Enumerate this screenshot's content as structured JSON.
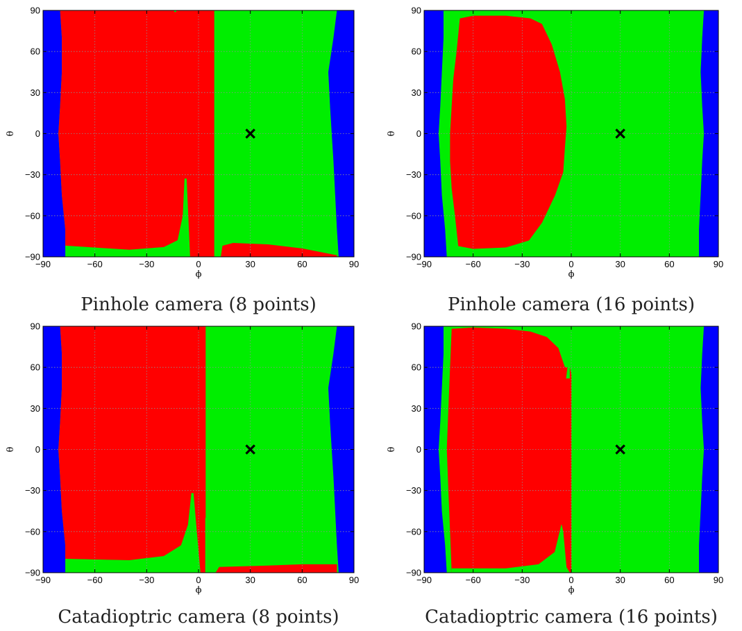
{
  "colors": {
    "blue": "#0000ff",
    "red": "#ff0000",
    "green": "#00ee00",
    "grid": "#8f8f8f",
    "marker": "#000000"
  },
  "chart_data": [
    {
      "type": "heatmap",
      "title": "",
      "caption": "Pinhole camera (8 points)",
      "xlabel": "ϕ",
      "ylabel": "θ",
      "xlim": [
        -90,
        90
      ],
      "ylim": [
        -90,
        90
      ],
      "xticks": [
        -90,
        -60,
        -30,
        0,
        30,
        60,
        90
      ],
      "yticks": [
        -90,
        -60,
        -30,
        0,
        30,
        60,
        90
      ],
      "xtick_labels": [
        "−90",
        "−60",
        "−30",
        "0",
        "30",
        "60",
        "90"
      ],
      "ytick_labels": [
        "−90",
        "−60",
        "−30",
        "0",
        "30",
        "60",
        "90"
      ],
      "grid": true,
      "marker": {
        "x": 30,
        "y": 0,
        "symbol": "x"
      },
      "background_region": "blue",
      "regions": [
        {
          "color": "green",
          "points": [
            [
              -80,
              90
            ],
            [
              80,
              90
            ],
            [
              78,
              70
            ],
            [
              75,
              45
            ],
            [
              76,
              20
            ],
            [
              77,
              0
            ],
            [
              78,
              -20
            ],
            [
              79,
              -45
            ],
            [
              80,
              -70
            ],
            [
              81,
              -90
            ],
            [
              -76,
              -90
            ],
            [
              -77,
              -82
            ],
            [
              -77,
              -70
            ],
            [
              -79,
              -45
            ],
            [
              -80,
              -20
            ],
            [
              -81,
              0
            ],
            [
              -80,
              20
            ],
            [
              -79,
              45
            ],
            [
              -79,
              70
            ],
            [
              -80,
              90
            ]
          ]
        },
        {
          "color": "red",
          "points": [
            [
              -80,
              90
            ],
            [
              9,
              90
            ],
            [
              9,
              -90
            ],
            [
              -76,
              -90
            ],
            [
              -77,
              -82
            ],
            [
              -77,
              -70
            ],
            [
              -79,
              -45
            ],
            [
              -80,
              -20
            ],
            [
              -81,
              0
            ],
            [
              -80,
              20
            ],
            [
              -79,
              45
            ],
            [
              -79,
              70
            ]
          ]
        },
        {
          "color": "green",
          "points": [
            [
              -77,
              -82
            ],
            [
              -40,
              -85
            ],
            [
              -20,
              -83
            ],
            [
              -12,
              -78
            ],
            [
              -9,
              -60
            ],
            [
              -8,
              -33
            ],
            [
              -7,
              -33
            ],
            [
              -5,
              -90
            ],
            [
              -77,
              -90
            ]
          ]
        },
        {
          "color": "red",
          "points": [
            [
              13,
              -90
            ],
            [
              14,
              -82
            ],
            [
              20,
              -80
            ],
            [
              40,
              -81
            ],
            [
              60,
              -84
            ],
            [
              80,
              -89
            ],
            [
              80,
              -90
            ]
          ]
        },
        {
          "color": "green",
          "points": [
            [
              -14,
              89
            ],
            [
              -14,
              90
            ],
            [
              -13,
              90
            ],
            [
              -13,
              89
            ]
          ]
        }
      ]
    },
    {
      "type": "heatmap",
      "title": "",
      "caption": "Pinhole camera (16 points)",
      "xlabel": "ϕ",
      "ylabel": "θ",
      "xlim": [
        -90,
        90
      ],
      "ylim": [
        -90,
        90
      ],
      "xticks": [
        -90,
        -60,
        -30,
        0,
        30,
        60,
        90
      ],
      "yticks": [
        -90,
        -60,
        -30,
        0,
        30,
        60,
        90
      ],
      "xtick_labels": [
        "−90",
        "−60",
        "−30",
        "0",
        "30",
        "60",
        "90"
      ],
      "ytick_labels": [
        "−90",
        "−60",
        "−30",
        "0",
        "30",
        "60",
        "90"
      ],
      "grid": true,
      "marker": {
        "x": 30,
        "y": 0,
        "symbol": "x"
      },
      "background_region": "blue",
      "regions": [
        {
          "color": "green",
          "points": [
            [
              -78,
              90
            ],
            [
              81,
              90
            ],
            [
              80,
              70
            ],
            [
              79,
              45
            ],
            [
              80,
              20
            ],
            [
              81,
              0
            ],
            [
              80,
              -20
            ],
            [
              79,
              -45
            ],
            [
              78,
              -70
            ],
            [
              78,
              -90
            ],
            [
              -76,
              -90
            ],
            [
              -77,
              -70
            ],
            [
              -79,
              -45
            ],
            [
              -80,
              -20
            ],
            [
              -81,
              0
            ],
            [
              -80,
              20
            ],
            [
              -79,
              45
            ],
            [
              -78,
              70
            ]
          ]
        },
        {
          "color": "red",
          "points": [
            [
              -68,
              84
            ],
            [
              -60,
              86
            ],
            [
              -40,
              86
            ],
            [
              -25,
              84
            ],
            [
              -18,
              80
            ],
            [
              -12,
              65
            ],
            [
              -7,
              45
            ],
            [
              -4,
              25
            ],
            [
              -3,
              5
            ],
            [
              -4,
              -10
            ],
            [
              -5,
              -28
            ],
            [
              -10,
              -45
            ],
            [
              -18,
              -65
            ],
            [
              -26,
              -78
            ],
            [
              -40,
              -83
            ],
            [
              -60,
              -84
            ],
            [
              -69,
              -82
            ],
            [
              -71,
              -60
            ],
            [
              -73,
              -40
            ],
            [
              -74,
              -20
            ],
            [
              -74,
              0
            ],
            [
              -73,
              20
            ],
            [
              -72,
              40
            ],
            [
              -70,
              60
            ]
          ]
        }
      ]
    },
    {
      "type": "heatmap",
      "title": "",
      "caption": "Catadioptric camera (8 points)",
      "xlabel": "ϕ",
      "ylabel": "θ",
      "xlim": [
        -90,
        90
      ],
      "ylim": [
        -90,
        90
      ],
      "xticks": [
        -90,
        -60,
        -30,
        0,
        30,
        60,
        90
      ],
      "yticks": [
        -90,
        -60,
        -30,
        0,
        30,
        60,
        90
      ],
      "xtick_labels": [
        "−90",
        "−60",
        "−30",
        "0",
        "30",
        "60",
        "90"
      ],
      "ytick_labels": [
        "−90",
        "−60",
        "−30",
        "0",
        "30",
        "60",
        "90"
      ],
      "grid": true,
      "marker": {
        "x": 30,
        "y": 0,
        "symbol": "x"
      },
      "background_region": "blue",
      "regions": [
        {
          "color": "green",
          "points": [
            [
              -80,
              90
            ],
            [
              80,
              90
            ],
            [
              78,
              70
            ],
            [
              75,
              45
            ],
            [
              76,
              20
            ],
            [
              77,
              0
            ],
            [
              78,
              -20
            ],
            [
              79,
              -45
            ],
            [
              80,
              -70
            ],
            [
              81,
              -90
            ],
            [
              -76,
              -90
            ],
            [
              -77,
              -82
            ],
            [
              -77,
              -70
            ],
            [
              -79,
              -45
            ],
            [
              -80,
              -20
            ],
            [
              -81,
              0
            ],
            [
              -80,
              20
            ],
            [
              -79,
              45
            ],
            [
              -79,
              70
            ]
          ]
        },
        {
          "color": "red",
          "points": [
            [
              -80,
              90
            ],
            [
              4,
              90
            ],
            [
              4,
              -90
            ],
            [
              -76,
              -90
            ],
            [
              -77,
              -82
            ],
            [
              -77,
              -70
            ],
            [
              -79,
              -45
            ],
            [
              -80,
              -20
            ],
            [
              -81,
              0
            ],
            [
              -80,
              20
            ],
            [
              -79,
              45
            ],
            [
              -79,
              70
            ]
          ]
        },
        {
          "color": "green",
          "points": [
            [
              -77,
              -80
            ],
            [
              -40,
              -81
            ],
            [
              -20,
              -78
            ],
            [
              -10,
              -70
            ],
            [
              -6,
              -55
            ],
            [
              -4,
              -32
            ],
            [
              -3,
              -32
            ],
            [
              1,
              -90
            ],
            [
              -77,
              -90
            ]
          ]
        },
        {
          "color": "green",
          "points": [
            [
              4,
              -50
            ],
            [
              6,
              -70
            ],
            [
              8,
              -84
            ],
            [
              10,
              -90
            ],
            [
              4,
              -90
            ]
          ]
        },
        {
          "color": "red",
          "points": [
            [
              10,
              -90
            ],
            [
              12,
              -86
            ],
            [
              40,
              -85
            ],
            [
              60,
              -84
            ],
            [
              80,
              -84
            ],
            [
              80,
              -90
            ]
          ]
        }
      ]
    },
    {
      "type": "heatmap",
      "title": "",
      "caption": "Catadioptric camera (16 points)",
      "xlabel": "ϕ",
      "ylabel": "θ",
      "xlim": [
        -90,
        90
      ],
      "ylim": [
        -90,
        90
      ],
      "xticks": [
        -90,
        -60,
        -30,
        0,
        30,
        60,
        90
      ],
      "yticks": [
        -90,
        -60,
        -30,
        0,
        30,
        60,
        90
      ],
      "xtick_labels": [
        "−90",
        "−60",
        "−30",
        "0",
        "30",
        "60",
        "90"
      ],
      "ytick_labels": [
        "−90",
        "−60",
        "−30",
        "0",
        "30",
        "60",
        "90"
      ],
      "grid": true,
      "marker": {
        "x": 30,
        "y": 0,
        "symbol": "x"
      },
      "background_region": "blue",
      "regions": [
        {
          "color": "green",
          "points": [
            [
              -78,
              90
            ],
            [
              81,
              90
            ],
            [
              80,
              70
            ],
            [
              79,
              45
            ],
            [
              80,
              20
            ],
            [
              81,
              0
            ],
            [
              80,
              -20
            ],
            [
              79,
              -45
            ],
            [
              78,
              -70
            ],
            [
              78,
              -90
            ],
            [
              -76,
              -90
            ],
            [
              -77,
              -70
            ],
            [
              -79,
              -45
            ],
            [
              -80,
              -20
            ],
            [
              -81,
              0
            ],
            [
              -80,
              20
            ],
            [
              -79,
              45
            ],
            [
              -78,
              70
            ]
          ]
        },
        {
          "color": "red",
          "points": [
            [
              -73,
              88
            ],
            [
              -60,
              89
            ],
            [
              -40,
              88
            ],
            [
              -25,
              86
            ],
            [
              -15,
              82
            ],
            [
              -8,
              74
            ],
            [
              -4,
              60
            ],
            [
              -1,
              60
            ],
            [
              0,
              55
            ],
            [
              0,
              -90
            ],
            [
              -73,
              -90
            ],
            [
              -74,
              -60
            ],
            [
              -75,
              -30
            ],
            [
              -76,
              0
            ],
            [
              -75,
              30
            ],
            [
              -74,
              60
            ]
          ]
        },
        {
          "color": "green",
          "points": [
            [
              -73,
              -87
            ],
            [
              -40,
              -87
            ],
            [
              -20,
              -84
            ],
            [
              -10,
              -75
            ],
            [
              -6,
              -55
            ],
            [
              -5,
              -60
            ],
            [
              -3,
              -86
            ],
            [
              -1,
              -90
            ],
            [
              -73,
              -90
            ]
          ]
        },
        {
          "color": "green",
          "points": [
            [
              -2,
              62
            ],
            [
              -3,
              52
            ],
            [
              -1,
              52
            ],
            [
              -1,
              62
            ]
          ]
        }
      ]
    }
  ]
}
